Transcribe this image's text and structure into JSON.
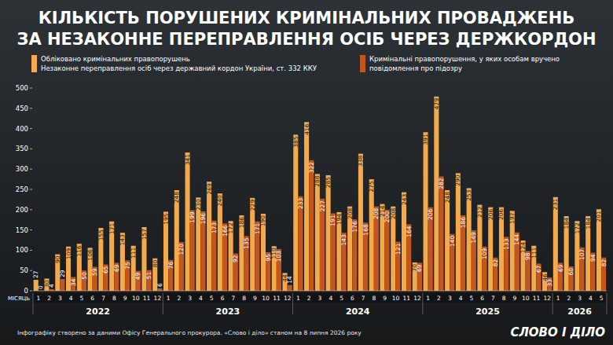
{
  "chart_data": {
    "type": "bar",
    "title": [
      "КІЛЬКІСТЬ ПОРУШЕНИХ КРИМІНАЛЬНИХ ПРОВАДЖЕНЬ",
      "ЗА НЕЗАКОННЕ ПЕРЕПРАВЛЕННЯ ОСІБ ЧЕРЕЗ ДЕРЖКОРДОН"
    ],
    "subtitle": "Незаконне переправлення осіб через державний кордон України, ст. 332 ККУ",
    "x_label": "МІСЯЦЬ",
    "source": "Інфографіку створено за даними Офісу Генерального прокурора. «Слово і діло» станом на 8 липня 2026 року",
    "logo": "СЛОВО І ДІЛО",
    "categories": [
      "1",
      "2",
      "3",
      "4",
      "5",
      "6",
      "7",
      "8",
      "9",
      "10",
      "11",
      "12",
      "1",
      "2",
      "3",
      "4",
      "5",
      "6",
      "7",
      "8",
      "9",
      "10",
      "11",
      "12",
      "1",
      "2",
      "3",
      "4",
      "5",
      "6",
      "7",
      "8",
      "9",
      "10",
      "11",
      "12",
      "1",
      "2",
      "3",
      "4",
      "5",
      "6",
      "7",
      "8",
      "9",
      "10",
      "11",
      "12",
      "1",
      "2",
      "3",
      "4",
      "5"
    ],
    "groups": [
      {
        "label": "2022",
        "count": 12
      },
      {
        "label": "2023",
        "count": 12
      },
      {
        "label": "2024",
        "count": 12
      },
      {
        "label": "2025",
        "count": 12
      },
      {
        "label": "2026",
        "count": 5
      }
    ],
    "series": [
      {
        "name": "Обліковано кримінальних правопорушень",
        "color": "#f4a94a",
        "values": [
          27,
          30,
          90,
          109,
          116,
          106,
          155,
          171,
          143,
          111,
          157,
          80,
          195,
          248,
          341,
          230,
          269,
          240,
          172,
          186,
          229,
          190,
          110,
          44,
          385,
          416,
          288,
          285,
          194,
          208,
          338,
          275,
          214,
          208,
          243,
          70,
          391,
          479,
          248,
          290,
          253,
          212,
          206,
          206,
          197,
          124,
          111,
          46,
          231,
          184,
          172,
          184,
          201
        ]
      },
      {
        "name": "Кримінальні правопорушення, у яких особам вручено повідомлення про підозру",
        "color": "#c4561c",
        "values": [
          0,
          4,
          29,
          34,
          50,
          59,
          65,
          69,
          75,
          49,
          51,
          6,
          76,
          120,
          199,
          196,
          173,
          166,
          92,
          135,
          171,
          95,
          103,
          14,
          233,
          322,
          227,
          191,
          143,
          176,
          168,
          208,
          200,
          121,
          164,
          69,
          206,
          282,
          140,
          186,
          149,
          109,
          82,
          133,
          144,
          98,
          67,
          33,
          69,
          60,
          107,
          94,
          82
        ]
      }
    ],
    "ylim": [
      0,
      500
    ],
    "yticks": [
      0,
      50,
      100,
      150,
      200,
      250,
      300,
      350,
      400,
      450,
      500
    ],
    "grid": false,
    "legend": "top",
    "data_labels": true
  }
}
